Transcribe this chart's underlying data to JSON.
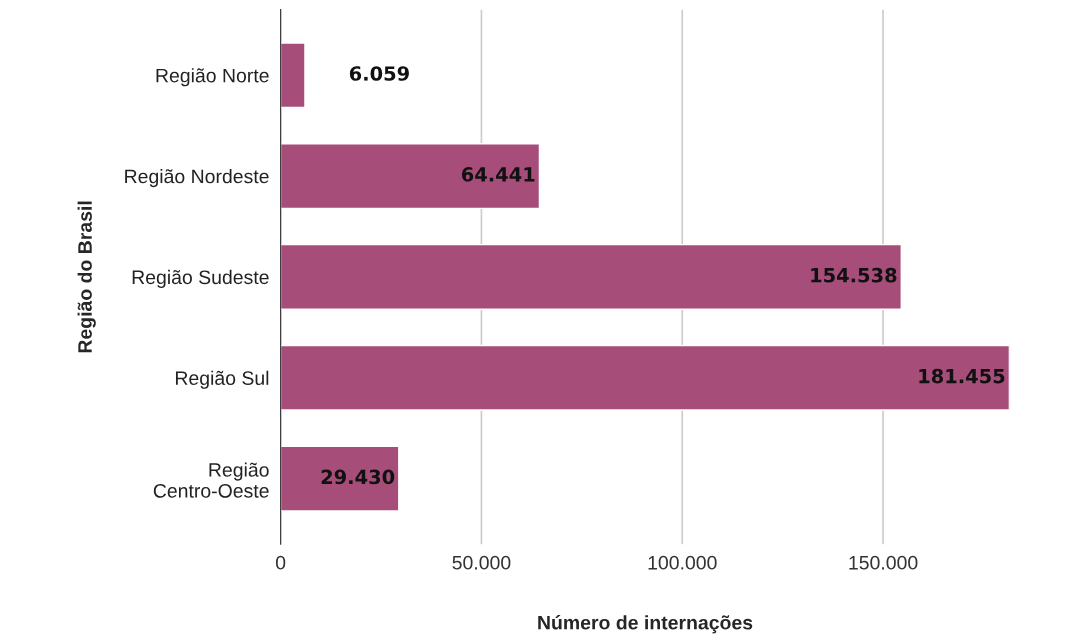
{
  "chart_data": {
    "type": "bar",
    "orientation": "horizontal",
    "xlabel": "Número de internações",
    "ylabel": "Região do Brasil",
    "categories": [
      "Região Norte",
      "Região Nordeste",
      "Região Sudeste",
      "Região Sul",
      "Região Centro-Oeste"
    ],
    "values": [
      6059,
      64441,
      154538,
      181455,
      29430
    ],
    "value_labels": [
      "6.059",
      "64.441",
      "154.538",
      "181.455",
      "29.430"
    ],
    "color": "#a64d79",
    "xlim": [
      0,
      181455
    ],
    "xticks": [
      0,
      {
        "value": 50000,
        "label": "50.000"
      },
      {
        "value": 100000,
        "label": "100.000"
      },
      {
        "value": 150000,
        "label": "150.000"
      }
    ],
    "grid": "x",
    "legend": false
  }
}
